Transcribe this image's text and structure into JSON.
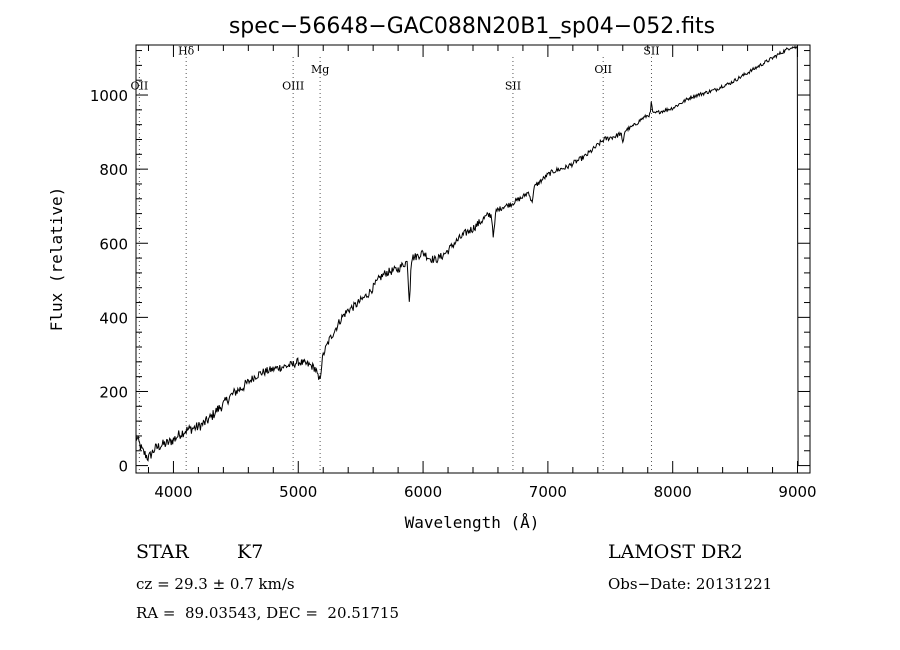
{
  "chart_data": {
    "type": "line",
    "title": "spec−56648−GAC088N20B1_sp04−052.fits",
    "xlabel": "Wavelength (Å)",
    "ylabel": "Flux (relative)",
    "xlim": [
      3700,
      9100
    ],
    "ylim": [
      -20,
      1135
    ],
    "xticks": [
      4000,
      5000,
      6000,
      7000,
      8000,
      9000
    ],
    "yticks": [
      0,
      200,
      400,
      600,
      800,
      1000
    ],
    "series": [
      {
        "name": "spectrum",
        "x": [
          3700,
          3750,
          3800,
          3850,
          3900,
          3950,
          4000,
          4050,
          4100,
          4150,
          4200,
          4250,
          4300,
          4350,
          4400,
          4450,
          4500,
          4550,
          4600,
          4650,
          4700,
          4750,
          4800,
          4850,
          4900,
          4950,
          5000,
          5050,
          5100,
          5150,
          5200,
          5250,
          5300,
          5350,
          5400,
          5450,
          5500,
          5550,
          5600,
          5650,
          5700,
          5750,
          5800,
          5850,
          5900,
          5950,
          6000,
          6050,
          6100,
          6150,
          6200,
          6250,
          6300,
          6350,
          6400,
          6450,
          6500,
          6550,
          6600,
          6650,
          6700,
          6750,
          6800,
          6850,
          6900,
          6950,
          7000,
          7050,
          7100,
          7150,
          7200,
          7250,
          7300,
          7350,
          7400,
          7450,
          7500,
          7550,
          7600,
          7650,
          7700,
          7750,
          7800,
          7850,
          7900,
          7950,
          8000,
          8050,
          8100,
          8150,
          8200,
          8250,
          8300,
          8350,
          8400,
          8450,
          8500,
          8550,
          8600,
          8650,
          8700,
          8750,
          8800,
          8850,
          8900,
          8950,
          9000
        ],
        "y": [
          80,
          40,
          20,
          45,
          55,
          60,
          70,
          85,
          95,
          100,
          105,
          115,
          130,
          150,
          165,
          185,
          200,
          210,
          225,
          240,
          250,
          255,
          260,
          265,
          268,
          272,
          280,
          275,
          270,
          260,
          300,
          340,
          370,
          400,
          420,
          430,
          445,
          460,
          480,
          505,
          520,
          525,
          530,
          545,
          560,
          565,
          575,
          560,
          555,
          565,
          580,
          600,
          615,
          630,
          640,
          655,
          670,
          680,
          690,
          700,
          705,
          715,
          725,
          740,
          755,
          770,
          785,
          795,
          800,
          805,
          815,
          825,
          835,
          850,
          865,
          880,
          885,
          890,
          900,
          910,
          920,
          935,
          945,
          950,
          955,
          960,
          965,
          975,
          985,
          995,
          1000,
          1005,
          1010,
          1015,
          1025,
          1030,
          1040,
          1050,
          1060,
          1070,
          1080,
          1090,
          1100,
          1110,
          1120,
          1130,
          1128
        ]
      }
    ],
    "lines": [
      {
        "label": "OII",
        "x": 3727,
        "label_y": 1015
      },
      {
        "label": "Hδ",
        "x": 4102,
        "label_y": 1110
      },
      {
        "label": "OIII",
        "x": 4959,
        "label_y": 1015
      },
      {
        "label": "Mg",
        "x": 5175,
        "label_y": 1060
      },
      {
        "label": "SII",
        "x": 6720,
        "label_y": 1015
      },
      {
        "label": "OII",
        "x": 7443,
        "label_y": 1060
      },
      {
        "label": "SII",
        "x": 7830,
        "label_y": 1110
      }
    ]
  },
  "info": {
    "object_type": "STAR",
    "subclass": "K7",
    "cz": "cz = 29.3 ± 0.7 km/s",
    "coords": "RA =  89.03543, DEC =  20.51715",
    "survey": "LAMOST DR2",
    "obs_date": "Obs−Date: 20131221"
  }
}
